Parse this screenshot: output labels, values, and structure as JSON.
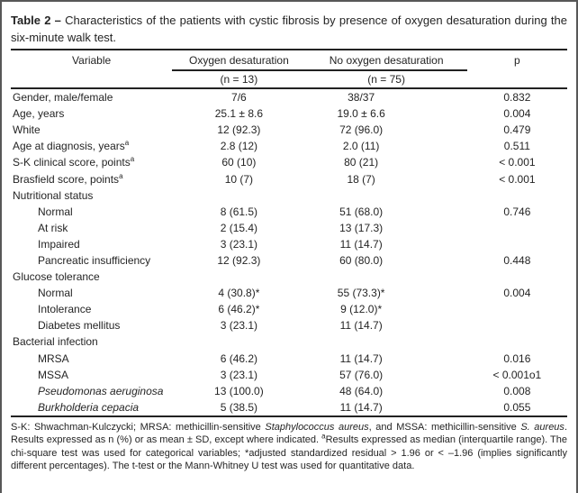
{
  "colors": {
    "text": "#242424",
    "rule": "#222222",
    "frame": "#585858",
    "background": "#ffffff"
  },
  "table": {
    "title_prefix": "Table 2 –",
    "title_text": " Characteristics of the patients with cystic fibrosis by presence of oxygen desaturation during the six-minute walk test.",
    "columns": {
      "variable": "Variable",
      "group1": "Oxygen desaturation",
      "group1_n": "(n = 13)",
      "group2": "No oxygen desaturation",
      "group2_n": "(n = 75)",
      "p": "p"
    },
    "rows": [
      {
        "label": "Gender, male/female",
        "c1": "7/6",
        "c2": "38/37",
        "p": "0.832"
      },
      {
        "label": "Age, years",
        "c1": "25.1 ± 8.6",
        "c2": "19.0 ± 6.6",
        "p": "0.004"
      },
      {
        "label": "White",
        "c1": "12 (92.3)",
        "c2": "72 (96.0)",
        "p": "0.479"
      },
      {
        "label": "Age at diagnosis, years",
        "sup": "a",
        "c1": "2.8 (12)",
        "c2": "2.0 (11)",
        "p": "0.511"
      },
      {
        "label": "S-K clinical score, points",
        "sup": "a",
        "c1": "60 (10)",
        "c2": "80 (21)",
        "p": "< 0.001"
      },
      {
        "label": "Brasfield score, points",
        "sup": "a",
        "c1": "10 (7)",
        "c2": "18 (7)",
        "p": "< 0.001"
      },
      {
        "label": "Nutritional status",
        "group": true,
        "c1": "",
        "c2": "",
        "p": ""
      },
      {
        "label": "Normal",
        "indent": true,
        "c1": "8 (61.5)",
        "c2": "51 (68.0)",
        "p": "0.746"
      },
      {
        "label": "At risk",
        "indent": true,
        "c1": "2 (15.4)",
        "c2": "13 (17.3)",
        "p": ""
      },
      {
        "label": "Impaired",
        "indent": true,
        "c1": "3 (23.1)",
        "c2": "11 (14.7)",
        "p": ""
      },
      {
        "label": "Pancreatic insufficiency",
        "indent": true,
        "c1": "12 (92.3)",
        "c2": "60 (80.0)",
        "p": "0.448"
      },
      {
        "label": "Glucose tolerance",
        "group": true,
        "c1": "",
        "c2": "",
        "p": ""
      },
      {
        "label": "Normal",
        "indent": true,
        "c1": "4 (30.8)*",
        "c2": "55 (73.3)*",
        "p": "0.004"
      },
      {
        "label": "Intolerance",
        "indent": true,
        "c1": "6 (46.2)*",
        "c2": "9 (12.0)*",
        "p": ""
      },
      {
        "label": "Diabetes mellitus",
        "indent": true,
        "c1": "3 (23.1)",
        "c2": "11 (14.7)",
        "p": ""
      },
      {
        "label": "Bacterial infection",
        "group": true,
        "c1": "",
        "c2": "",
        "p": ""
      },
      {
        "label": "MRSA",
        "indent": true,
        "c1": "6 (46.2)",
        "c2": "11 (14.7)",
        "p": "0.016"
      },
      {
        "label": "MSSA",
        "indent": true,
        "c1": "3 (23.1)",
        "c2": "57 (76.0)",
        "p": "< 0.001o1"
      },
      {
        "label": "Pseudomonas aeruginosa",
        "indent": true,
        "italic": true,
        "c1": "13 (100.0)",
        "c2": "48 (64.0)",
        "p": "0.008"
      },
      {
        "label": "Burkholderia cepacia",
        "indent": true,
        "italic": true,
        "c1": "5 (38.5)",
        "c2": "11 (14.7)",
        "p": "0.055"
      }
    ],
    "footnote_segments": [
      {
        "text": "S-K: Shwachman-Kulczycki; MRSA: methicillin-sensitive "
      },
      {
        "text": "Staphylococcus aureus",
        "italic": true
      },
      {
        "text": ", and MSSA: methicillin-sensitive "
      },
      {
        "text": "S. aureus",
        "italic": true
      },
      {
        "text": ". Results expressed as n (%) or as mean ± SD, except where indicated. "
      },
      {
        "text": "a",
        "sup": true
      },
      {
        "text": "Results expressed as median (interquartile range). The chi-square test was used for categorical variables; *adjusted standardized residual > 1.96 or < –1.96 (implies significantly different percentages). The t-test or the Mann-Whitney U test was used for quantitative data."
      }
    ]
  }
}
